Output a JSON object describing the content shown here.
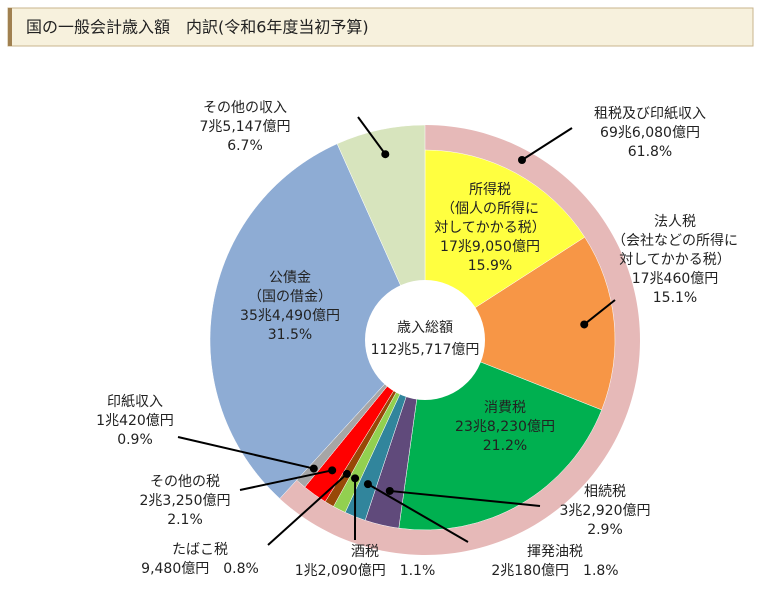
{
  "chart_data": {
    "type": "pie",
    "title": "国の一般会計歳入額　内訳(令和6年度当初予算)",
    "center_label": "歳入総額",
    "center_amount": "112兆5,717億円",
    "categories": [
      "所得税",
      "法人税",
      "消費税",
      "相続税",
      "揮発油税",
      "酒税",
      "たばこ税",
      "その他の税",
      "印紙収入",
      "公債金",
      "その他の収入"
    ],
    "notes": [
      [
        "（個人の所得に",
        "対してかかる税）"
      ],
      [
        "（会社などの所得に",
        "対してかかる税）"
      ],
      null,
      null,
      null,
      null,
      null,
      null,
      null,
      [
        "（国の借金）"
      ],
      null
    ],
    "amounts": [
      "17兆9,050億円",
      "17兆460億円",
      "23兆8,230億円",
      "3兆2,920億円",
      "2兆180億円",
      "1兆2,090億円",
      "9,480億円",
      "2兆3,250億円",
      "1兆420億円",
      "35兆4,490億円",
      "7兆5,147億円"
    ],
    "values": [
      15.9,
      15.1,
      21.2,
      2.9,
      1.8,
      1.1,
      0.8,
      2.1,
      0.9,
      31.5,
      6.7
    ],
    "value_labels": [
      "15.9%",
      "15.1%",
      "21.2%",
      "2.9%",
      "1.8%",
      "1.1%",
      "0.8%",
      "2.1%",
      "0.9%",
      "31.5%",
      "6.7%"
    ],
    "colors": [
      "#ffff40",
      "#f79646",
      "#00b050",
      "#604a7b",
      "#31859c",
      "#92d050",
      "#984807",
      "#ff0000",
      "#a6a6a6",
      "#8eacd4",
      "#d7e4bd"
    ],
    "outer": {
      "name": "租税及び印紙収入",
      "amount": "69兆6,080億円",
      "value": 61.8,
      "value_label": "61.8%",
      "color": "#e6b9b8"
    }
  }
}
